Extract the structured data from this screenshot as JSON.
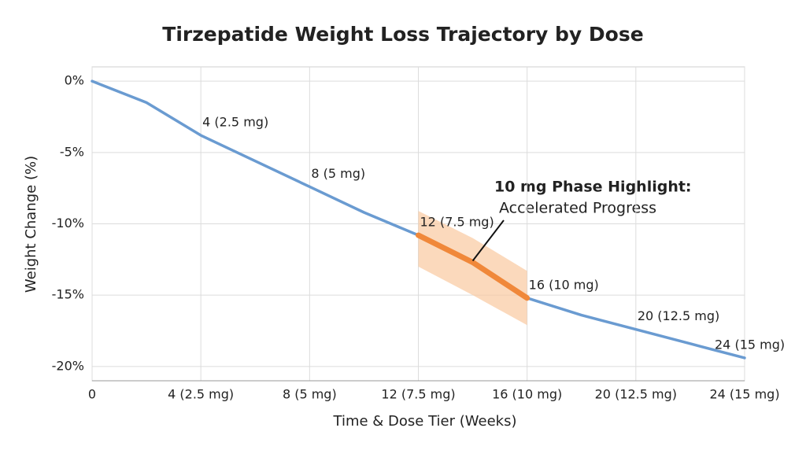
{
  "chart_data": {
    "type": "line",
    "title": "Tirzepatide Weight Loss Trajectory by Dose",
    "x_label": "Time & Dose Tier (Weeks)",
    "y_label": "Weight Change (%)",
    "x": [
      0,
      2,
      4,
      6,
      8,
      10,
      12,
      14,
      16,
      18,
      20,
      22,
      24
    ],
    "series": [
      {
        "color": "#6a9bd1",
        "values": [
          0,
          -1.5,
          -3.8,
          -5.6,
          -7.4,
          -9.2,
          -10.8,
          -12.7,
          -15.2,
          -16.4,
          -17.4,
          -18.4,
          -19.4
        ]
      },
      {
        "color": "#f0883a",
        "values": [
          null,
          null,
          null,
          null,
          null,
          null,
          -10.8,
          -12.7,
          -15.2,
          null,
          null,
          null,
          null
        ]
      }
    ],
    "band": {
      "color": "#f9c9a0",
      "upper": [
        null,
        null,
        null,
        null,
        null,
        null,
        -9.1,
        -11.0,
        -13.3,
        null,
        null,
        null,
        null
      ],
      "lower": [
        null,
        null,
        null,
        null,
        null,
        null,
        -13.0,
        -15.0,
        -17.1,
        null,
        null,
        null,
        null
      ]
    },
    "xlim": [
      0,
      24
    ],
    "xticks": [
      0,
      {
        "value": 4,
        "label": "4 (2.5 mg)"
      },
      {
        "value": 8,
        "label": "8 (5 mg)"
      },
      {
        "value": 12,
        "label": "12 (7.5 mg)"
      },
      {
        "value": 16,
        "label": "16 (10 mg)"
      },
      {
        "value": 20,
        "label": "20 (12.5 mg)"
      },
      {
        "value": 24,
        "label": "24 (15 mg)"
      }
    ],
    "ylim": [
      -21,
      1
    ],
    "yticks": [
      {
        "value": 0,
        "label": "0%"
      },
      {
        "value": -5,
        "label": "-5%"
      },
      {
        "value": -10,
        "label": "-10%"
      },
      {
        "value": -15,
        "label": "-15%"
      },
      {
        "value": -20,
        "label": "-20%"
      }
    ],
    "grid": true,
    "annotations": [
      {
        "x": 4,
        "text": "4 (2.5 mg)"
      },
      {
        "x": 8,
        "text": "8 (5 mg)"
      },
      {
        "x": 12,
        "text": "12 (7.5 mg)"
      },
      {
        "x": 16,
        "text": "16 (10 mg)"
      },
      {
        "x": 20,
        "text": "20 (12.5 mg)"
      },
      {
        "x": 24,
        "text": "24 (15 mg)"
      }
    ],
    "highlight": {
      "title": "10 mg Phase Highlight:",
      "subtitle": "Accelerated Progress",
      "x": 14
    }
  }
}
